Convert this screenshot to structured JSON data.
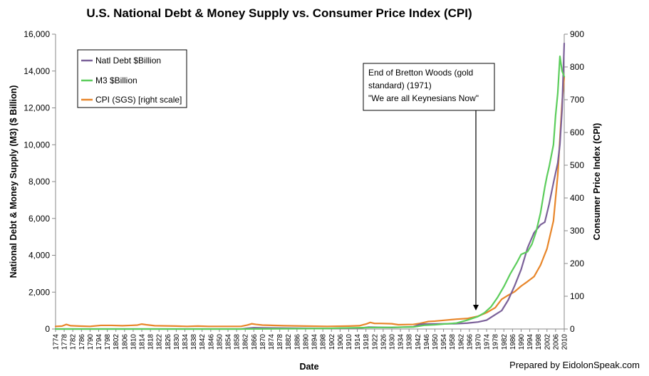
{
  "chart_data": {
    "type": "line",
    "title": "U.S. National Debt & Money Supply vs. Consumer Price Index (CPI)",
    "xlabel": "Date",
    "ylabel_left": "National Debt & Money Supply (M3)  ($ Billion)",
    "ylabel_right": "Consumer Price Index (CPI)",
    "xlim": [
      1774,
      2010
    ],
    "ylim_left": [
      0,
      16000
    ],
    "ylim_right": [
      0,
      900
    ],
    "yticks_left": [
      "0",
      "2,000",
      "4,000",
      "6,000",
      "8,000",
      "10,000",
      "12,000",
      "14,000",
      "16,000"
    ],
    "yticks_right": [
      "0",
      "100",
      "200",
      "300",
      "400",
      "500",
      "600",
      "700",
      "800",
      "900"
    ],
    "xticks": [
      "1774",
      "1778",
      "1782",
      "1786",
      "1790",
      "1794",
      "1798",
      "1802",
      "1806",
      "1810",
      "1814",
      "1818",
      "1822",
      "1826",
      "1830",
      "1834",
      "1838",
      "1842",
      "1846",
      "1850",
      "1854",
      "1858",
      "1862",
      "1866",
      "1870",
      "1874",
      "1878",
      "1882",
      "1886",
      "1890",
      "1894",
      "1898",
      "1902",
      "1906",
      "1910",
      "1914",
      "1918",
      "1922",
      "1926",
      "1930",
      "1934",
      "1938",
      "1942",
      "1946",
      "1950",
      "1954",
      "1958",
      "1962",
      "1966",
      "1970",
      "1974",
      "1978",
      "1982",
      "1986",
      "1990",
      "1994",
      "1998",
      "2002",
      "2006",
      "2010"
    ],
    "grid": false,
    "legend": "top-left",
    "series": [
      {
        "name": "Natl Debt $Billion",
        "color": "#7b6199",
        "axis": "left",
        "points": [
          [
            1774,
            0
          ],
          [
            1860,
            0
          ],
          [
            1863,
            40
          ],
          [
            1866,
            70
          ],
          [
            1870,
            60
          ],
          [
            1900,
            30
          ],
          [
            1916,
            60
          ],
          [
            1919,
            100
          ],
          [
            1930,
            80
          ],
          [
            1940,
            120
          ],
          [
            1943,
            250
          ],
          [
            1946,
            270
          ],
          [
            1955,
            280
          ],
          [
            1960,
            290
          ],
          [
            1965,
            320
          ],
          [
            1970,
            380
          ],
          [
            1974,
            480
          ],
          [
            1978,
            780
          ],
          [
            1981,
            1000
          ],
          [
            1984,
            1570
          ],
          [
            1987,
            2350
          ],
          [
            1990,
            3230
          ],
          [
            1993,
            4410
          ],
          [
            1996,
            5220
          ],
          [
            1999,
            5660
          ],
          [
            2001,
            5800
          ],
          [
            2003,
            6780
          ],
          [
            2005,
            7930
          ],
          [
            2007,
            9010
          ],
          [
            2008,
            10020
          ],
          [
            2009,
            11900
          ],
          [
            2010,
            15500
          ]
        ]
      },
      {
        "name": "M3 $Billion",
        "color": "#5ccd5c",
        "axis": "left",
        "points": [
          [
            1774,
            0
          ],
          [
            1860,
            0
          ],
          [
            1900,
            30
          ],
          [
            1910,
            60
          ],
          [
            1920,
            80
          ],
          [
            1930,
            90
          ],
          [
            1940,
            110
          ],
          [
            1945,
            200
          ],
          [
            1950,
            230
          ],
          [
            1955,
            280
          ],
          [
            1960,
            320
          ],
          [
            1965,
            480
          ],
          [
            1970,
            680
          ],
          [
            1973,
            880
          ],
          [
            1976,
            1200
          ],
          [
            1979,
            1700
          ],
          [
            1982,
            2300
          ],
          [
            1985,
            3000
          ],
          [
            1988,
            3600
          ],
          [
            1990,
            4050
          ],
          [
            1993,
            4200
          ],
          [
            1995,
            4600
          ],
          [
            1997,
            5300
          ],
          [
            1999,
            6300
          ],
          [
            2001,
            7700
          ],
          [
            2002,
            8300
          ],
          [
            2003,
            8800
          ],
          [
            2005,
            10000
          ],
          [
            2006,
            11600
          ],
          [
            2007,
            12800
          ],
          [
            2008,
            14800
          ],
          [
            2009,
            14000
          ],
          [
            2010,
            13700
          ]
        ]
      },
      {
        "name": "CPI (SGS) [right scale]",
        "color": "#e8862a",
        "axis": "right",
        "points": [
          [
            1774,
            8
          ],
          [
            1777,
            9
          ],
          [
            1779,
            14
          ],
          [
            1781,
            10
          ],
          [
            1785,
            9
          ],
          [
            1790,
            8
          ],
          [
            1795,
            11
          ],
          [
            1800,
            11
          ],
          [
            1805,
            10
          ],
          [
            1809,
            11
          ],
          [
            1812,
            12
          ],
          [
            1814,
            15
          ],
          [
            1816,
            13
          ],
          [
            1820,
            10
          ],
          [
            1830,
            9
          ],
          [
            1835,
            8
          ],
          [
            1840,
            9
          ],
          [
            1845,
            8
          ],
          [
            1850,
            8
          ],
          [
            1855,
            8
          ],
          [
            1860,
            8
          ],
          [
            1863,
            12
          ],
          [
            1865,
            16
          ],
          [
            1867,
            14
          ],
          [
            1870,
            12
          ],
          [
            1880,
            10
          ],
          [
            1890,
            9
          ],
          [
            1900,
            8
          ],
          [
            1910,
            9
          ],
          [
            1915,
            10
          ],
          [
            1918,
            15
          ],
          [
            1920,
            20
          ],
          [
            1922,
            17
          ],
          [
            1925,
            17
          ],
          [
            1930,
            16
          ],
          [
            1933,
            13
          ],
          [
            1940,
            14
          ],
          [
            1943,
            17
          ],
          [
            1947,
            23
          ],
          [
            1950,
            24
          ],
          [
            1955,
            27
          ],
          [
            1960,
            30
          ],
          [
            1965,
            32
          ],
          [
            1970,
            39
          ],
          [
            1974,
            50
          ],
          [
            1978,
            65
          ],
          [
            1981,
            91
          ],
          [
            1984,
            103
          ],
          [
            1987,
            114
          ],
          [
            1990,
            131
          ],
          [
            1993,
            145
          ],
          [
            1996,
            160
          ],
          [
            1999,
            195
          ],
          [
            2002,
            245
          ],
          [
            2005,
            330
          ],
          [
            2007,
            470
          ],
          [
            2008,
            580
          ],
          [
            2009,
            690
          ],
          [
            2010,
            770
          ]
        ]
      }
    ],
    "annotations": [
      {
        "lines": [
          "End of Bretton Woods (gold",
          "standard) (1971)",
          "\"We are all Keynesians Now\""
        ],
        "arrow_to_x": 1971
      }
    ]
  },
  "credit": "Prepared by EidolonSpeak.com"
}
